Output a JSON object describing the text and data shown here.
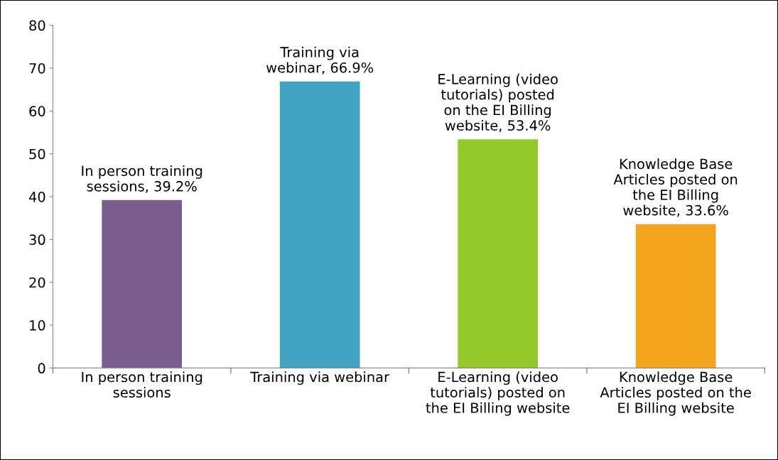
{
  "chart_data": {
    "type": "bar",
    "categories": [
      "In person training\nsessions",
      "Training via webinar",
      "E-Learning (video\ntutorials) posted on\nthe EI Billing website",
      "Knowledge Base\nArticles posted on the\nEI Billing website"
    ],
    "values": [
      39.2,
      66.9,
      53.4,
      33.6
    ],
    "colors": [
      "#7b5e8e",
      "#41a3c1",
      "#93c92a",
      "#f4a41d"
    ],
    "value_labels": [
      "In person training\nsessions, 39.2%",
      "Training via\nwebinar, 66.9%",
      "E-Learning (video\ntutorials) posted\non the EI Billing\nwebsite, 53.4%",
      "Knowledge Base\nArticles posted on\nthe EI Billing\nwebsite, 33.6%"
    ],
    "ylim": [
      0,
      80
    ],
    "yticks": [
      0,
      10,
      20,
      30,
      40,
      50,
      60,
      70,
      80
    ],
    "grid": false,
    "legend": false
  }
}
